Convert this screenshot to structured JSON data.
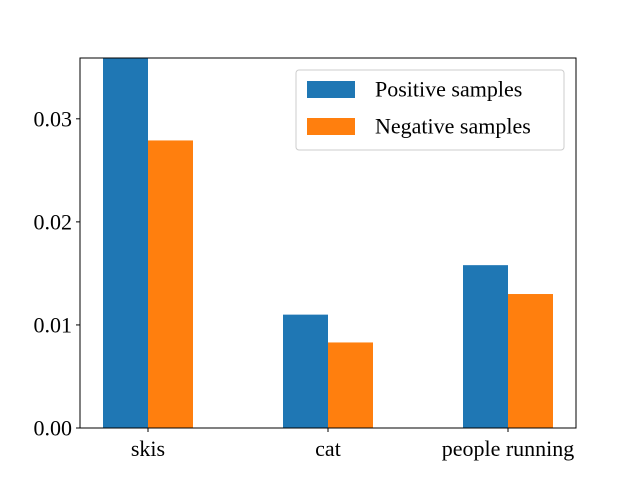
{
  "chart_data": {
    "type": "bar",
    "title": "",
    "xlabel": "",
    "ylabel": "",
    "categories": [
      "skis",
      "cat",
      "people running"
    ],
    "series": [
      {
        "name": "Positive samples",
        "values": [
          0.0359,
          0.011,
          0.0158
        ],
        "color": "#1f77b4"
      },
      {
        "name": "Negative samples",
        "values": [
          0.0279,
          0.0083,
          0.013
        ],
        "color": "#ff7f0e"
      }
    ],
    "ylim": [
      0,
      0.0359
    ],
    "yticks": [
      {
        "value": 0.0,
        "label": "0.00"
      },
      {
        "value": 0.01,
        "label": "0.01"
      },
      {
        "value": 0.02,
        "label": "0.02"
      },
      {
        "value": 0.03,
        "label": "0.03"
      }
    ],
    "legend_position": "top-right",
    "grid": false
  }
}
